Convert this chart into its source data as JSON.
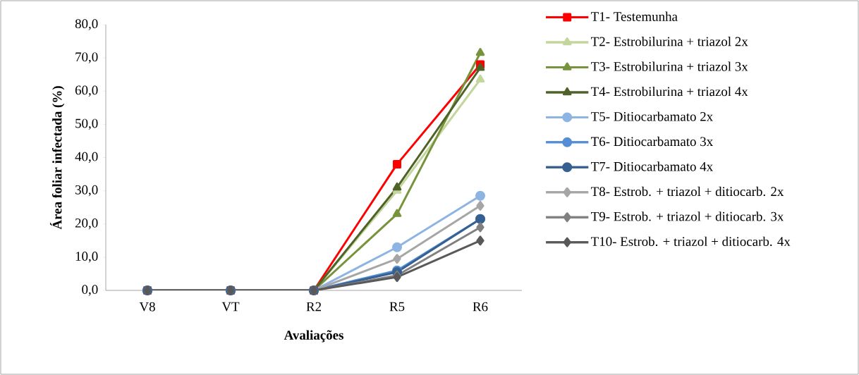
{
  "chart_data": {
    "type": "line",
    "xlabel": "Avaliações",
    "ylabel": "Área foliar infectada (%)",
    "categories": [
      "V8",
      "VT",
      "R2",
      "R5",
      "R6"
    ],
    "ylim": [
      0,
      80
    ],
    "yticks": [
      {
        "value": 0,
        "label": "0,0"
      },
      {
        "value": 10,
        "label": "10,0"
      },
      {
        "value": 20,
        "label": "20,0"
      },
      {
        "value": 30,
        "label": "30,0"
      },
      {
        "value": 40,
        "label": "40,0"
      },
      {
        "value": 50,
        "label": "50,0"
      },
      {
        "value": 60,
        "label": "60,0"
      },
      {
        "value": 70,
        "label": "70,0"
      },
      {
        "value": 80,
        "label": "80,0"
      }
    ],
    "grid": false,
    "legend": "right",
    "line_style": "solid",
    "series": [
      {
        "name": "T1- Testemunha",
        "color": "#ff0000",
        "marker": "square",
        "values": [
          0,
          0,
          0,
          38,
          68
        ]
      },
      {
        "name": "T2- Estrobilurina + triazol 2x",
        "color": "#c3d69b",
        "marker": "triangle",
        "values": [
          0,
          0,
          0,
          30,
          63.5
        ]
      },
      {
        "name": "T3- Estrobilurina + triazol 3x",
        "color": "#77933c",
        "marker": "triangle",
        "values": [
          0,
          0,
          0,
          23,
          71.5
        ]
      },
      {
        "name": "T4- Estrobilurina + triazol 4x",
        "color": "#4f6228",
        "marker": "triangle",
        "values": [
          0,
          0,
          0,
          31,
          67
        ]
      },
      {
        "name": "T5- Ditiocarbamato 2x",
        "color": "#8eb4e3",
        "marker": "circle",
        "values": [
          0,
          0,
          0,
          13,
          28.5
        ]
      },
      {
        "name": "T6- Ditiocarbamato 3x",
        "color": "#558ed5",
        "marker": "circle",
        "values": [
          0,
          0,
          0,
          6,
          21.5
        ]
      },
      {
        "name": "T7- Ditiocarbamato 4x",
        "color": "#376092",
        "marker": "circle",
        "values": [
          0,
          0,
          0,
          5.5,
          21.5
        ]
      },
      {
        "name": "T8- Estrob. + triazol + ditiocarb. 2x",
        "color": "#a6a6a6",
        "marker": "diamond",
        "values": [
          0,
          0,
          0,
          9.5,
          25.5
        ]
      },
      {
        "name": "T9- Estrob. + triazol + ditiocarb. 3x",
        "color": "#808080",
        "marker": "diamond",
        "values": [
          0,
          0,
          0,
          4.5,
          19
        ]
      },
      {
        "name": "T10- Estrob. + triazol + ditiocarb. 4x",
        "color": "#595959",
        "marker": "diamond",
        "values": [
          0,
          0,
          0,
          4,
          15
        ]
      }
    ]
  }
}
